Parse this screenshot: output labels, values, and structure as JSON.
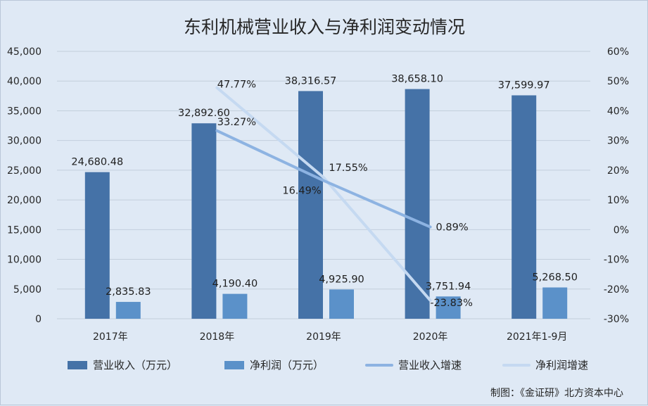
{
  "chart_data": {
    "type": "bar",
    "title": "东利机械营业收入与净利润变动情况",
    "categories": [
      "2017年",
      "2018年",
      "2019年",
      "2020年",
      "2021年1-9月"
    ],
    "y_left": {
      "ylim": [
        0,
        45000
      ],
      "ticks": [
        "0",
        "5,000",
        "10,000",
        "15,000",
        "20,000",
        "25,000",
        "30,000",
        "35,000",
        "40,000",
        "45,000"
      ]
    },
    "y_right": {
      "ylim": [
        -30,
        60
      ],
      "ticks": [
        "-30%",
        "-20%",
        "-10%",
        "0%",
        "10%",
        "20%",
        "30%",
        "40%",
        "50%",
        "60%"
      ]
    },
    "series": [
      {
        "name": "营业收入（万元）",
        "kind": "bar",
        "axis": "left",
        "color": "#4572a7",
        "values": [
          24680.48,
          32892.6,
          38316.57,
          38658.1,
          37599.97
        ],
        "labels": [
          "24,680.48",
          "32,892.60",
          "38,316.57",
          "38,658.10",
          "37,599.97"
        ]
      },
      {
        "name": "净利润（万元）",
        "kind": "bar",
        "axis": "left",
        "color": "#5b91c9",
        "values": [
          2835.83,
          4190.4,
          4925.9,
          3751.94,
          5268.5
        ],
        "labels": [
          "2,835.83",
          "4,190.40",
          "4,925.90",
          "3,751.94",
          "5,268.50"
        ]
      },
      {
        "name": "营业收入增速",
        "kind": "line",
        "axis": "right",
        "color": "#8db3e2",
        "values": [
          null,
          33.27,
          16.49,
          0.89,
          null
        ],
        "labels": [
          "",
          "33.27%",
          "16.49%",
          "0.89%",
          ""
        ]
      },
      {
        "name": "净利润增速",
        "kind": "line",
        "axis": "right",
        "color": "#c5d9f1",
        "values": [
          null,
          47.77,
          17.55,
          -23.83,
          null
        ],
        "labels": [
          "",
          "47.77%",
          "17.55%",
          "-23.83%",
          ""
        ]
      }
    ],
    "grid": true,
    "legend": "bottom"
  },
  "credit": "制图：《金证研》北方资本中心"
}
